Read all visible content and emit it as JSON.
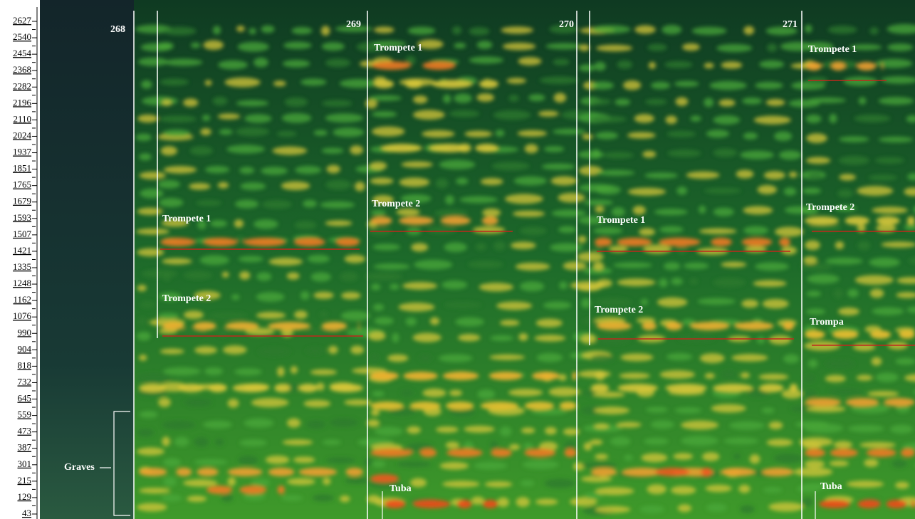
{
  "frequency_axis": {
    "ticks": [
      "2627",
      "2540",
      "2454",
      "2368",
      "2282",
      "2196",
      "2110",
      "2024",
      "1937",
      "1851",
      "1765",
      "1679",
      "1593",
      "1507",
      "1421",
      "1335",
      "1248",
      "1162",
      "1076",
      "990",
      "904",
      "818",
      "732",
      "645",
      "559",
      "473",
      "387",
      "301",
      "215",
      "129",
      "43"
    ]
  },
  "measures": [
    "268",
    "269",
    "270",
    "271"
  ],
  "annotations": [
    "Trompete 1",
    "Trompete 2",
    "Trompete 1",
    "Trompete 2",
    "Trompete 1",
    "Trompete 2",
    "Trompete 1",
    "Trompete 2",
    "Trompa",
    "Tuba",
    "Tuba",
    "Graves"
  ]
}
